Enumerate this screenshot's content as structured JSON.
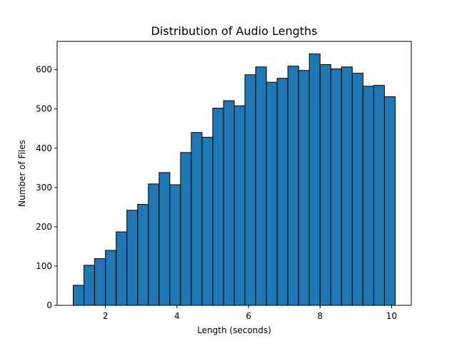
{
  "chart_data": {
    "type": "bar",
    "title": "Distribution of Audio Lengths",
    "xlabel": "Length (seconds)",
    "ylabel": "Number of Files",
    "xlim": [
      0.65,
      10.55
    ],
    "ylim": [
      0,
      672
    ],
    "xticks": [
      2,
      4,
      6,
      8,
      10
    ],
    "yticks": [
      0,
      100,
      200,
      300,
      400,
      500,
      600
    ],
    "grid": false,
    "legend": "none",
    "bar_color": "#1f77b4",
    "edge_color": "#000000",
    "bins": [
      {
        "x0": 1.1,
        "x1": 1.4,
        "value": 51
      },
      {
        "x0": 1.4,
        "x1": 1.7,
        "value": 102
      },
      {
        "x0": 1.7,
        "x1": 2.0,
        "value": 119
      },
      {
        "x0": 2.0,
        "x1": 2.3,
        "value": 140
      },
      {
        "x0": 2.3,
        "x1": 2.6,
        "value": 187
      },
      {
        "x0": 2.6,
        "x1": 2.9,
        "value": 242
      },
      {
        "x0": 2.9,
        "x1": 3.2,
        "value": 257
      },
      {
        "x0": 3.2,
        "x1": 3.5,
        "value": 309
      },
      {
        "x0": 3.5,
        "x1": 3.8,
        "value": 338
      },
      {
        "x0": 3.8,
        "x1": 4.1,
        "value": 307
      },
      {
        "x0": 4.1,
        "x1": 4.4,
        "value": 389
      },
      {
        "x0": 4.4,
        "x1": 4.7,
        "value": 440
      },
      {
        "x0": 4.7,
        "x1": 5.0,
        "value": 428
      },
      {
        "x0": 5.0,
        "x1": 5.3,
        "value": 502
      },
      {
        "x0": 5.3,
        "x1": 5.6,
        "value": 521
      },
      {
        "x0": 5.6,
        "x1": 5.9,
        "value": 508
      },
      {
        "x0": 5.9,
        "x1": 6.2,
        "value": 587
      },
      {
        "x0": 6.2,
        "x1": 6.5,
        "value": 607
      },
      {
        "x0": 6.5,
        "x1": 6.8,
        "value": 568
      },
      {
        "x0": 6.8,
        "x1": 7.1,
        "value": 578
      },
      {
        "x0": 7.1,
        "x1": 7.4,
        "value": 609
      },
      {
        "x0": 7.4,
        "x1": 7.7,
        "value": 598
      },
      {
        "x0": 7.7,
        "x1": 8.0,
        "value": 640
      },
      {
        "x0": 8.0,
        "x1": 8.3,
        "value": 613
      },
      {
        "x0": 8.3,
        "x1": 8.6,
        "value": 602
      },
      {
        "x0": 8.6,
        "x1": 8.9,
        "value": 607
      },
      {
        "x0": 8.9,
        "x1": 9.2,
        "value": 591
      },
      {
        "x0": 9.2,
        "x1": 9.5,
        "value": 558
      },
      {
        "x0": 9.5,
        "x1": 9.8,
        "value": 560
      },
      {
        "x0": 9.8,
        "x1": 10.1,
        "value": 531
      }
    ]
  }
}
